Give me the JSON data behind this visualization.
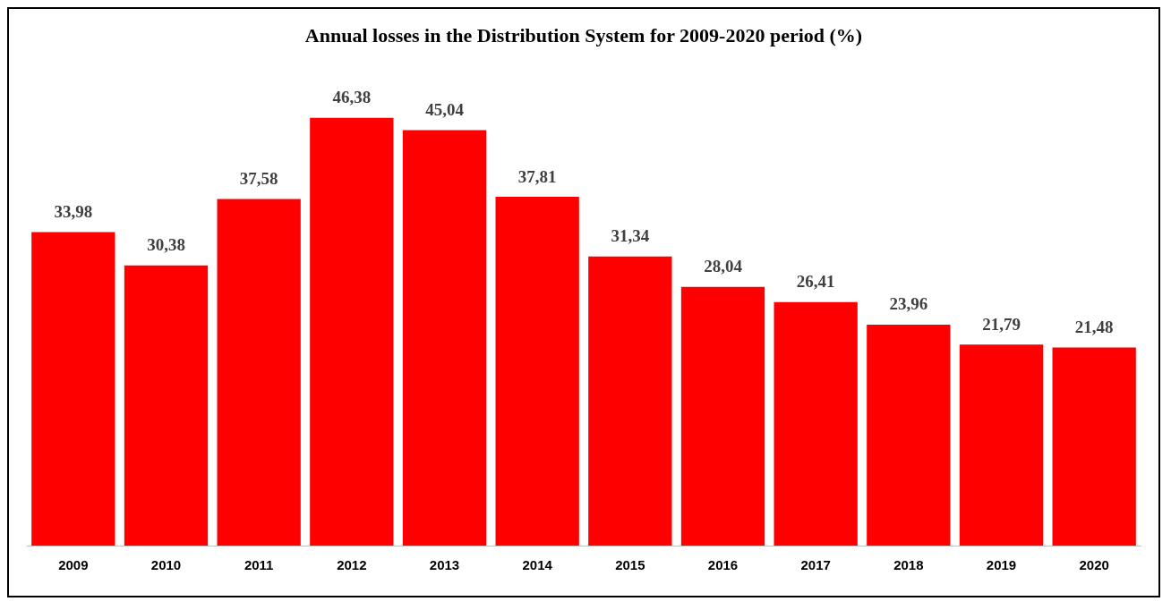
{
  "chart_data": {
    "type": "bar",
    "title": "Annual losses in the Distribution System for 2009-2020 period (%)",
    "categories": [
      "2009",
      "2010",
      "2011",
      "2012",
      "2013",
      "2014",
      "2015",
      "2016",
      "2017",
      "2018",
      "2019",
      "2020"
    ],
    "values": [
      33.98,
      30.38,
      37.58,
      46.38,
      45.04,
      37.81,
      31.34,
      28.04,
      26.41,
      23.96,
      21.79,
      21.48
    ],
    "value_labels": [
      "33,98",
      "30,38",
      "37,58",
      "46,38",
      "45,04",
      "37,81",
      "31,34",
      "28,04",
      "26,41",
      "23,96",
      "21,79",
      "21,48"
    ],
    "color": "#ff0000",
    "tick_labels": "x",
    "grid": false,
    "legend": false
  }
}
